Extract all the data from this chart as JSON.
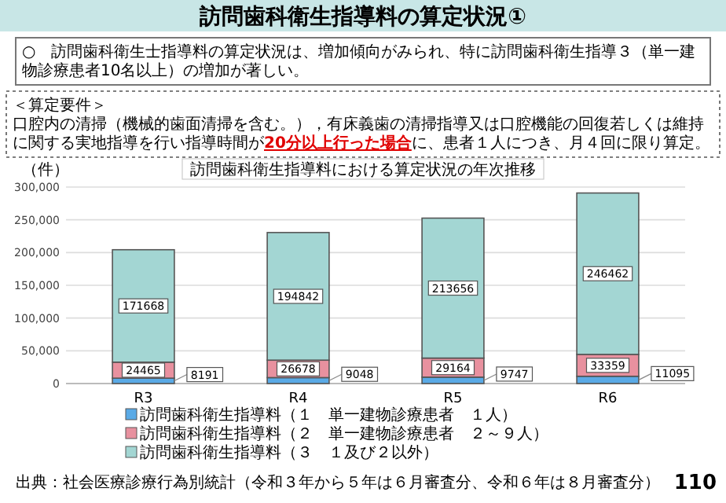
{
  "chart_data": {
    "type": "bar",
    "title": "訪問歯科衛生指導料の算定状況①",
    "subtitle": "訪問歯科衛生指導料における算定状況の年次推移",
    "ylabel": "（件）",
    "categories": [
      "R3",
      "R4",
      "R5",
      "R6"
    ],
    "series": [
      {
        "name": "訪問歯科衛生指導料（１　単一建物診療患者　１人）",
        "color": "#5aaae6",
        "values": [
          8191,
          9048,
          9747,
          11095
        ]
      },
      {
        "name": "訪問歯科衛生指導料（２　単一建物診療患者　２～９人）",
        "color": "#e8919f",
        "values": [
          24465,
          26678,
          29164,
          33359
        ]
      },
      {
        "name": "訪問歯科衛生指導料（３　１及び２以外）",
        "color": "#a3d6d3",
        "values": [
          171668,
          194842,
          213656,
          246462
        ]
      }
    ],
    "stacked": true,
    "data_labels": true,
    "ylim": [
      0,
      300000
    ],
    "yticks": [
      {
        "value": 0,
        "label": "0"
      },
      {
        "value": 50000,
        "label": "50,000"
      },
      {
        "value": 100000,
        "label": "100,000"
      },
      {
        "value": 150000,
        "label": "150,000"
      },
      {
        "value": 200000,
        "label": "200,000"
      },
      {
        "value": 250000,
        "label": "250,000"
      },
      {
        "value": 300000,
        "label": "300,000"
      }
    ],
    "grid": "y",
    "legend": "bottom",
    "annotations": [
      "○　訪問歯科衛生士指導料の算定状況は、増加傾向がみられ、特に訪問歯科衛生指導３（単一建物診療患者10名以上）の増加が著しい。",
      "＜算定要件＞",
      "口腔内の清掃（機械的歯面清掃を含む。），有床義歯の清掃指導又は口腔機能の回復若しくは維持に関する実地指導を行い指導時間が",
      "20分以上行った場合",
      "に、患者１人につき、月４回に限り算定。",
      "出典：社会医療診療行為別統計（令和３年から５年は６月審査分、令和６年は８月審査分）",
      "110"
    ]
  }
}
